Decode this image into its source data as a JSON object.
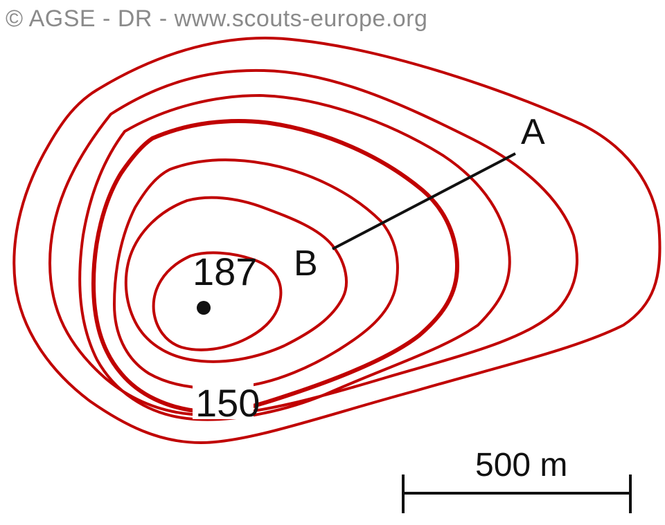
{
  "copyright": "© AGSE - DR - www.scouts-europe.org",
  "labels": {
    "summit_elevation": "187",
    "contour_elevation": "150",
    "point_a": "A",
    "point_b": "B"
  },
  "scale_bar": {
    "label": "500 m"
  },
  "colors": {
    "contour": "#c00000",
    "ink": "#111111",
    "watermark": "#8a8a8a"
  }
}
